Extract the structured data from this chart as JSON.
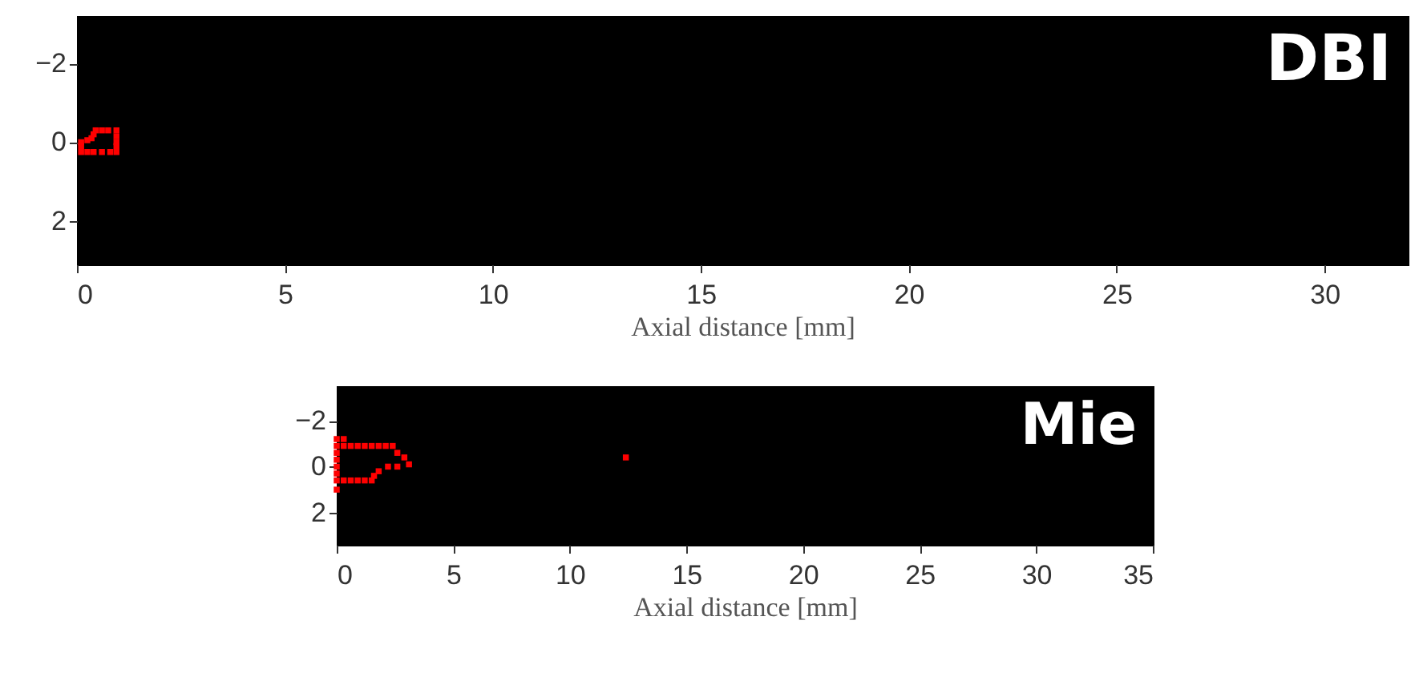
{
  "chart_data": [
    {
      "type": "scatter",
      "marker": "square",
      "xlabel": "Axial distance [mm]",
      "annotations": [
        "DBI"
      ],
      "xlim": [
        0,
        32
      ],
      "ylim": [
        3.1,
        -3.2
      ],
      "xticks": [
        0,
        5,
        10,
        15,
        20,
        25,
        30
      ],
      "yticks": [
        -2,
        0,
        2
      ],
      "series": [
        {
          "color": "#ff0000",
          "x": [
            0.45,
            0.6,
            0.75,
            0.95,
            0.95,
            0.95,
            0.95,
            0.95,
            0.8,
            0.6,
            0.4,
            0.25,
            0.1,
            0.1,
            0.1,
            0.25,
            0.35,
            0.4
          ],
          "values": [
            -0.3,
            -0.3,
            -0.3,
            -0.3,
            -0.15,
            0.0,
            0.1,
            0.25,
            0.25,
            0.25,
            0.25,
            0.25,
            0.25,
            0.1,
            0.0,
            -0.05,
            -0.1,
            -0.2
          ]
        }
      ]
    },
    {
      "type": "scatter",
      "marker": "square",
      "xlabel": "Axial distance [mm]",
      "annotations": [
        "Mie"
      ],
      "xlim": [
        0,
        35
      ],
      "ylim": [
        3.4,
        -3.5
      ],
      "xticks": [
        0,
        5,
        10,
        15,
        20,
        25,
        30,
        35
      ],
      "yticks": [
        -2,
        0,
        2
      ],
      "series": [
        {
          "color": "#ff0000",
          "x": [
            0,
            0,
            0,
            0,
            0,
            0,
            0,
            0,
            0.3,
            0.3,
            0.6,
            0.9,
            1.2,
            1.5,
            1.8,
            2.1,
            2.4,
            2.6,
            2.9,
            3.1,
            2.6,
            2.2,
            1.8,
            1.6,
            1.5,
            1.2,
            0.9,
            0.6,
            0.3
          ],
          "values": [
            -1.2,
            -0.9,
            -0.6,
            -0.3,
            0.0,
            0.3,
            0.6,
            1.0,
            -1.2,
            -0.9,
            -0.9,
            -0.9,
            -0.9,
            -0.9,
            -0.9,
            -0.9,
            -0.9,
            -0.6,
            -0.4,
            -0.1,
            0.0,
            0.0,
            0.2,
            0.4,
            0.6,
            0.6,
            0.6,
            0.6,
            0.6
          ]
        },
        {
          "color": "#ff0000",
          "x": [
            12.4
          ],
          "values": [
            -0.4
          ]
        }
      ]
    }
  ]
}
